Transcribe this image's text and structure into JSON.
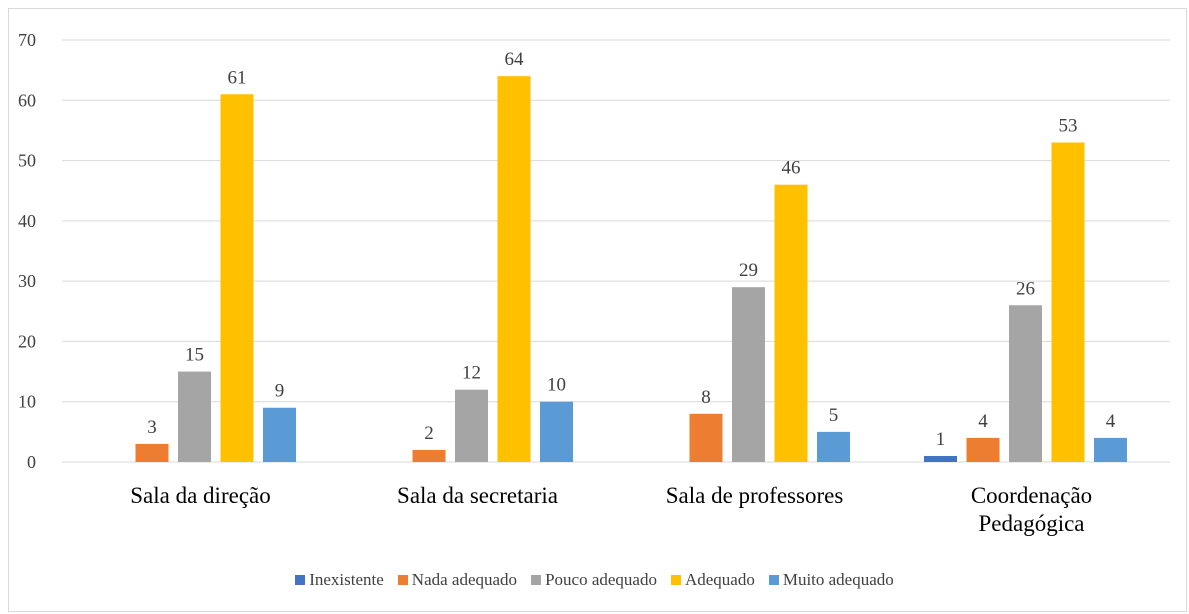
{
  "chart_data": {
    "type": "bar",
    "categories": [
      "Sala da direção",
      "Sala da secretaria",
      "Sala de professores",
      "Coordenação Pedagógica"
    ],
    "series": [
      {
        "name": "Inexistente",
        "color": "#4472c4",
        "values": [
          null,
          null,
          null,
          1
        ]
      },
      {
        "name": "Nada adequado",
        "color": "#ed7d31",
        "values": [
          3,
          2,
          8,
          4
        ]
      },
      {
        "name": "Pouco adequado",
        "color": "#a5a5a5",
        "values": [
          15,
          12,
          29,
          26
        ]
      },
      {
        "name": "Adequado",
        "color": "#ffc000",
        "values": [
          61,
          64,
          46,
          53
        ]
      },
      {
        "name": "Muito adequado",
        "color": "#5b9bd5",
        "values": [
          9,
          10,
          5,
          4
        ]
      }
    ],
    "ylim": [
      0,
      70
    ],
    "yticks": [
      0,
      10,
      20,
      30,
      40,
      50,
      60,
      70
    ],
    "grid": true,
    "legend": "bottom"
  }
}
